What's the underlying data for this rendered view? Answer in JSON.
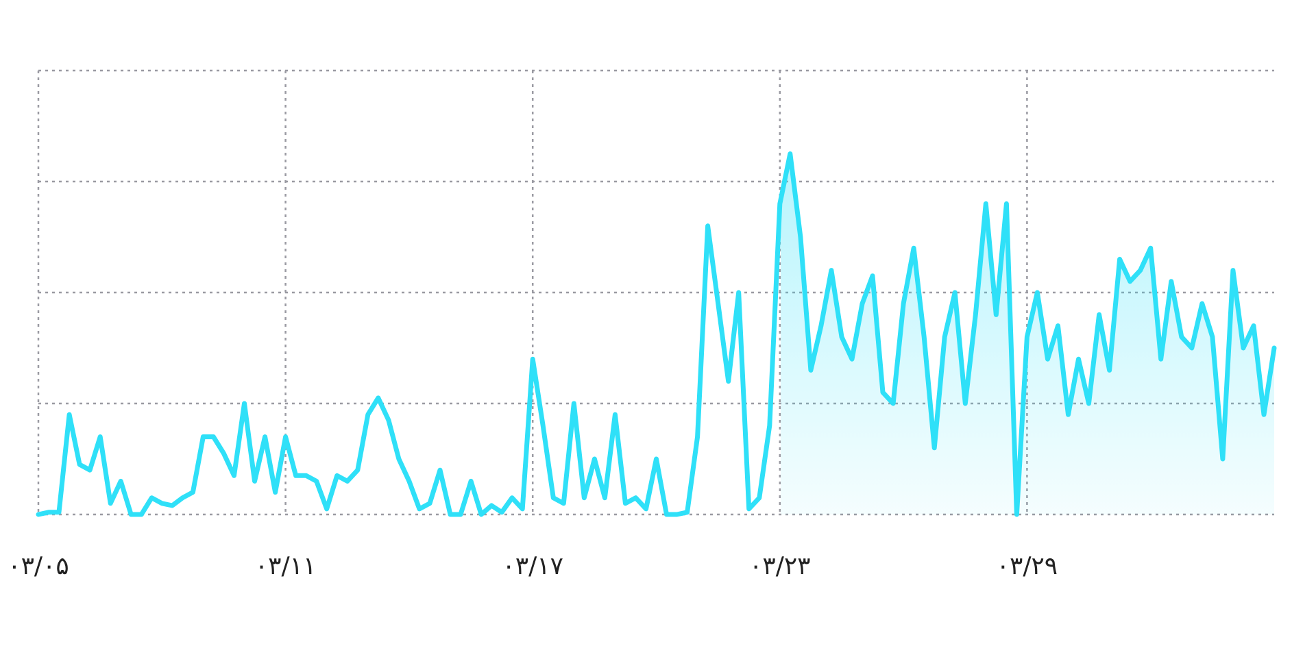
{
  "chart_data": {
    "type": "line",
    "categories": [
      "۰۳/۰۵",
      null,
      null,
      null,
      null,
      null,
      null,
      null,
      null,
      null,
      null,
      null,
      null,
      null,
      null,
      null,
      null,
      null,
      null,
      null,
      null,
      null,
      null,
      null,
      "۰۳/۱۱",
      null,
      null,
      null,
      null,
      null,
      null,
      null,
      null,
      null,
      null,
      null,
      null,
      null,
      null,
      null,
      null,
      null,
      null,
      null,
      null,
      null,
      null,
      null,
      "۰۳/۱۷",
      null,
      null,
      null,
      null,
      null,
      null,
      null,
      null,
      null,
      null,
      null,
      null,
      null,
      null,
      null,
      null,
      null,
      null,
      null,
      null,
      null,
      null,
      null,
      "۰۳/۲۳",
      null,
      null,
      null,
      null,
      null,
      null,
      null,
      null,
      null,
      null,
      null,
      null,
      null,
      null,
      null,
      null,
      null,
      null,
      null,
      null,
      null,
      null,
      null,
      "۰۳/۲۹",
      null,
      null,
      null,
      null,
      null,
      null,
      null,
      null,
      null,
      null,
      null,
      null,
      null,
      null,
      null,
      null,
      null,
      null,
      null,
      null,
      null,
      null,
      null,
      null
    ],
    "values": [
      0,
      0.02,
      0.02,
      0.9,
      0.45,
      0.4,
      0.7,
      0.1,
      0.3,
      0,
      0,
      0.15,
      0.1,
      0.08,
      0.15,
      0.2,
      0.7,
      0.7,
      0.55,
      0.35,
      1.0,
      0.3,
      0.7,
      0.2,
      0.7,
      0.35,
      0.35,
      0.3,
      0.05,
      0.35,
      0.3,
      0.4,
      0.9,
      1.05,
      0.85,
      0.5,
      0.3,
      0.05,
      0.1,
      0.4,
      0,
      0,
      0.3,
      0,
      0.08,
      0.02,
      0.15,
      0.05,
      1.4,
      0.8,
      0.15,
      0.1,
      1.0,
      0.15,
      0.5,
      0.15,
      0.9,
      0.1,
      0.15,
      0.05,
      0.5,
      0,
      0,
      0.02,
      0.7,
      2.6,
      1.9,
      1.2,
      2.0,
      0.05,
      0.15,
      0.8,
      2.8,
      3.25,
      2.5,
      1.3,
      1.7,
      2.2,
      1.6,
      1.4,
      1.9,
      2.15,
      1.1,
      1.0,
      1.9,
      2.4,
      1.6,
      0.6,
      1.6,
      2.0,
      1.0,
      1.8,
      2.8,
      1.8,
      2.8,
      0,
      1.6,
      2.0,
      1.4,
      1.7,
      0.9,
      1.4,
      1.0,
      1.8,
      1.3,
      2.3,
      2.1,
      2.2,
      2.4,
      1.4,
      2.1,
      1.6,
      1.5,
      1.9,
      1.6,
      0.5,
      2.2,
      1.5,
      1.7,
      0.9,
      1.5
    ],
    "color": "#2fe0f8",
    "ylim": [
      0,
      4
    ],
    "yticks": [
      0,
      1,
      2,
      3,
      4
    ],
    "grid": true
  }
}
